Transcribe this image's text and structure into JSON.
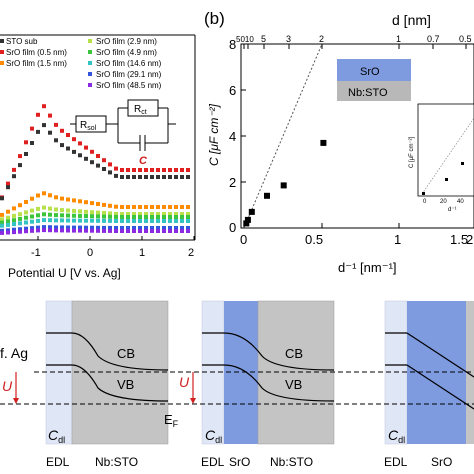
{
  "panel_a": {
    "legend_left": [
      "STO sub",
      "SrO film (0.5 nm)",
      "SrO film (1.5 nm)"
    ],
    "legend_right": [
      "SrO film (2.9 nm)",
      "SrO film (4.9 nm)",
      "SrO film (14.6 nm)",
      "SrO film (29.1 nm)",
      "SrO film (48.5 nm)"
    ],
    "legend_colors_left": [
      "#333333",
      "#e02020",
      "#ff8c00"
    ],
    "legend_colors_right": [
      "#b8e04a",
      "#3cc43c",
      "#33c3c3",
      "#3355dd",
      "#8a2be2"
    ],
    "circuit": {
      "rsol": "R",
      "rsol_sub": "sol",
      "rct": "R",
      "rct_sub": "ct",
      "cap": "C"
    },
    "x_ticks": [
      "-1",
      "0",
      "1",
      "2"
    ],
    "x_label": "Potential U [V vs. Ag]"
  },
  "panel_b": {
    "tag": "(b)",
    "top_axis_label": "d [nm]",
    "top_ticks": [
      "5010",
      "5",
      "3",
      "2",
      "1",
      "0.7",
      "0.5"
    ],
    "y_ticks": [
      "0",
      "2",
      "4",
      "6",
      "8"
    ],
    "x_ticks": [
      "0",
      "0.5",
      "1",
      "1.5",
      "2"
    ],
    "y_label": "C [μF cm⁻²]",
    "x_label": "d⁻¹ [nm⁻¹]",
    "layer_labels": [
      "SrO",
      "Nb:STO"
    ],
    "inset": {
      "y_label": "C [μF cm⁻²]",
      "x_label": "d⁻¹",
      "x_ticks": [
        "0",
        "20",
        "40"
      ]
    }
  },
  "chart_data": {
    "type": "scatter",
    "x": [
      0.02,
      0.034,
      0.068,
      0.2,
      0.345,
      0.69
    ],
    "y": [
      0.2,
      0.35,
      0.7,
      1.4,
      1.85,
      3.7
    ],
    "xlabel": "d⁻¹ [nm⁻¹]",
    "ylabel": "C [μF cm⁻²]",
    "xlim": [
      0,
      2
    ],
    "ylim": [
      0,
      8
    ],
    "grid": false
  },
  "bands": {
    "left_fragments": [
      "f. Ag",
      "U"
    ],
    "ef": "E",
    "ef_sub": "F",
    "cb": "CB",
    "vb": "VB",
    "u": "U",
    "cdl": "C",
    "cdl_sub": "dl",
    "bottom1": [
      "EDL",
      "Nb:STO"
    ],
    "bottom2": [
      "EDL",
      "SrO",
      "Nb:STO"
    ],
    "bottom3": [
      "EDL",
      "SrO"
    ]
  }
}
